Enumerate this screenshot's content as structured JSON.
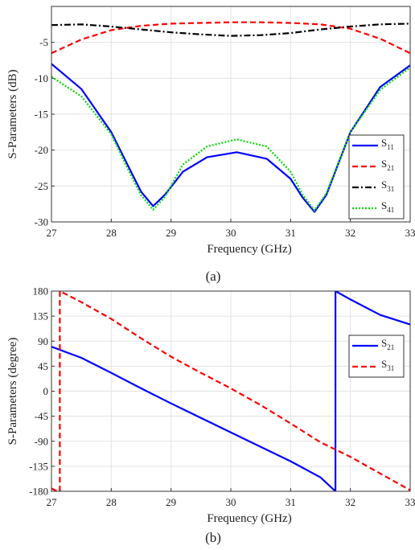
{
  "chart_data": [
    {
      "type": "line",
      "panel_label": "(a)",
      "xlabel": "Frequency (GHz)",
      "ylabel": "S-Parameters (dB)",
      "xlim": [
        27,
        33
      ],
      "ylim": [
        -30,
        0
      ],
      "xticks": [
        "27",
        "28",
        "29",
        "30",
        "31",
        "32",
        "33"
      ],
      "yticks": [
        "-5",
        "-10",
        "-15",
        "-20",
        "-25",
        "-30"
      ],
      "grid": true,
      "legend_position": "bottom-right",
      "series": [
        {
          "name": "S11",
          "name_main": "S",
          "name_sub": "11",
          "color": "#0000ff",
          "dash": "solid",
          "x": [
            27,
            27.5,
            28,
            28.3,
            28.5,
            28.7,
            28.9,
            29.2,
            29.6,
            30.1,
            30.6,
            31.0,
            31.2,
            31.4,
            31.6,
            32.0,
            32.5,
            33
          ],
          "y": [
            -8,
            -11.5,
            -17.5,
            -22.5,
            -25.8,
            -27.8,
            -26.2,
            -23.0,
            -21.0,
            -20.3,
            -21.2,
            -24.0,
            -26.6,
            -28.6,
            -26.2,
            -17.5,
            -11.2,
            -8.2
          ]
        },
        {
          "name": "S21",
          "name_main": "S",
          "name_sub": "21",
          "color": "#ff0000",
          "dash": "dashed",
          "x": [
            27,
            27.5,
            28,
            28.5,
            29,
            29.5,
            30,
            30.5,
            31,
            31.5,
            32,
            32.5,
            33
          ],
          "y": [
            -6.5,
            -4.6,
            -3.3,
            -2.7,
            -2.4,
            -2.3,
            -2.2,
            -2.2,
            -2.3,
            -2.5,
            -3.1,
            -4.5,
            -6.5
          ]
        },
        {
          "name": "S31",
          "name_main": "S",
          "name_sub": "31",
          "color": "#000000",
          "dash": "dashdot",
          "x": [
            27,
            27.5,
            28,
            28.5,
            29,
            29.5,
            30,
            30.5,
            31,
            31.5,
            32,
            32.5,
            33
          ],
          "y": [
            -2.6,
            -2.5,
            -2.8,
            -3.2,
            -3.6,
            -3.9,
            -4.1,
            -4.0,
            -3.7,
            -3.2,
            -2.8,
            -2.5,
            -2.4
          ]
        },
        {
          "name": "S41",
          "name_main": "S",
          "name_sub": "41",
          "color": "#00dd00",
          "dash": "dotted",
          "x": [
            27,
            27.5,
            28,
            28.3,
            28.5,
            28.7,
            28.9,
            29.2,
            29.6,
            30.1,
            30.6,
            31.0,
            31.2,
            31.4,
            31.6,
            32.0,
            32.5,
            33
          ],
          "y": [
            -9.8,
            -12.5,
            -17.8,
            -23.0,
            -26.3,
            -28.3,
            -26.5,
            -22.0,
            -19.5,
            -18.5,
            -19.5,
            -23.0,
            -26.2,
            -28.4,
            -26.0,
            -17.5,
            -11.6,
            -8.5
          ]
        }
      ]
    },
    {
      "type": "line",
      "panel_label": "(b)",
      "xlabel": "Frequency (GHz)",
      "ylabel": "S-Parameters (degree)",
      "xlim": [
        27,
        33
      ],
      "ylim": [
        -180,
        180
      ],
      "xticks": [
        "27",
        "28",
        "29",
        "30",
        "31",
        "32",
        "33"
      ],
      "yticks": [
        "180",
        "135",
        "90",
        "45",
        "0",
        "-45",
        "-90",
        "-135",
        "-180"
      ],
      "grid": true,
      "legend_position": "top-right",
      "series": [
        {
          "name": "S21",
          "name_main": "S",
          "name_sub": "21",
          "color": "#0000ff",
          "dash": "solid",
          "x": [
            27,
            27.5,
            28,
            28.5,
            29,
            29.5,
            30,
            30.5,
            31,
            31.5,
            31.75,
            31.75,
            32,
            32.5,
            33
          ],
          "y": [
            80,
            60,
            33,
            5,
            -22,
            -48,
            -74,
            -100,
            -126,
            -155,
            -180,
            180,
            165,
            137,
            120
          ]
        },
        {
          "name": "S31",
          "name_main": "S",
          "name_sub": "31",
          "color": "#ff0000",
          "dash": "dashed",
          "x": [
            27,
            27.1,
            27.1,
            27.14,
            27.14,
            27.5,
            28,
            28.5,
            29,
            29.5,
            30,
            30.5,
            31,
            31.5,
            32,
            32.5,
            33
          ],
          "y": [
            -175,
            -180,
            -180,
            -180,
            180,
            160,
            130,
            95,
            62,
            33,
            5,
            -25,
            -58,
            -92,
            -118,
            -148,
            -178
          ]
        }
      ]
    }
  ]
}
